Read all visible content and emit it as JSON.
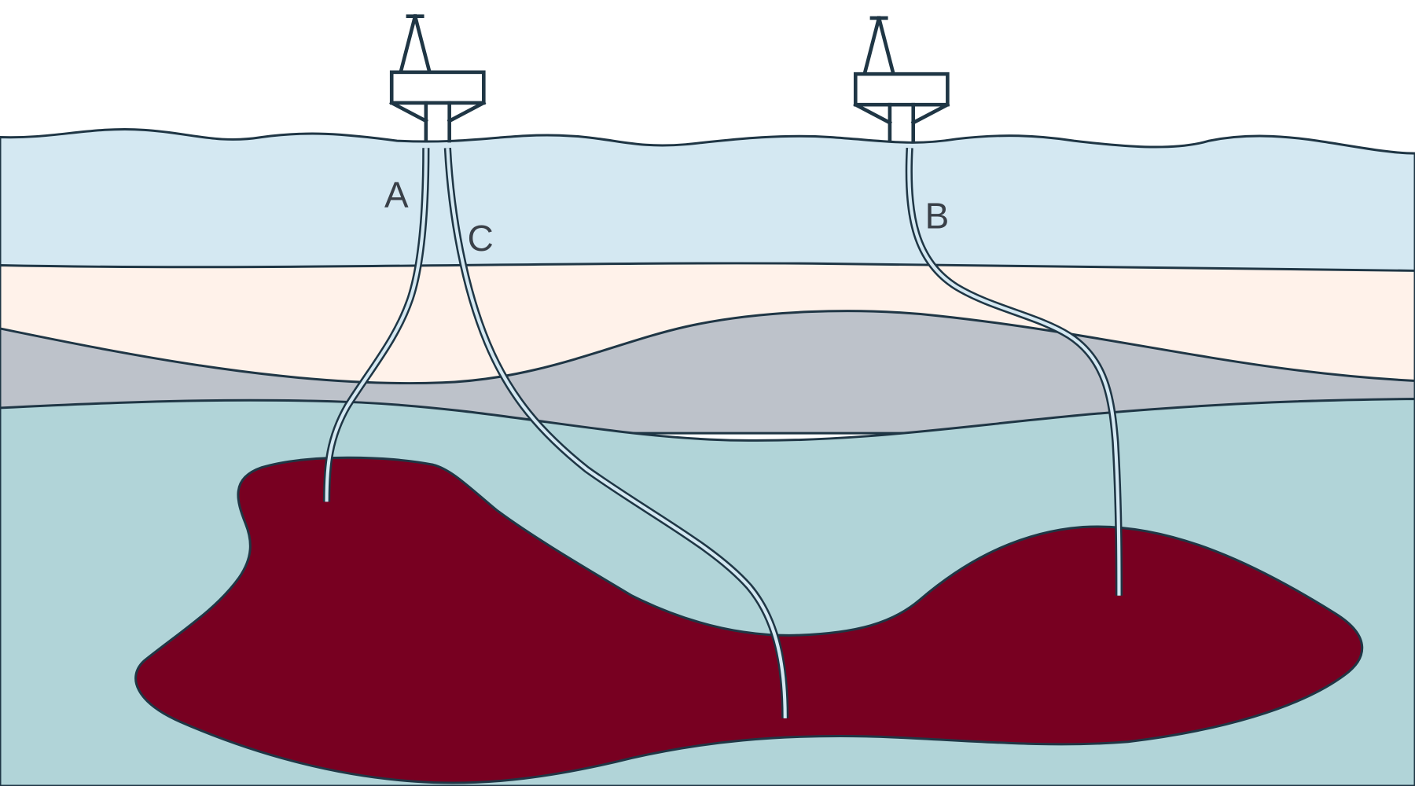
{
  "colors": {
    "sky": "#ffffff",
    "sea": "#d4e8f2",
    "sand_layer": "#fff2ea",
    "rock_layer": "#bdc2ca",
    "deep_layer": "#b1d4d8",
    "reservoir": "#780021",
    "outline": "#1f3645"
  },
  "icons": {
    "rigs": [
      "oil-rig-icon",
      "oil-rig-icon"
    ]
  },
  "wells": {
    "a": {
      "label": "A"
    },
    "b": {
      "label": "B"
    },
    "c": {
      "label": "C"
    }
  }
}
